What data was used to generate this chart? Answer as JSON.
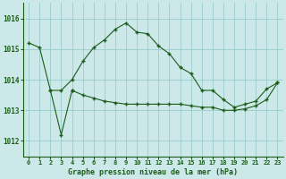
{
  "title": "Graphe pression niveau de la mer (hPa)",
  "background_color": "#cce8e8",
  "grid_color": "#99cccc",
  "line_color": "#1a5c1a",
  "xlim": [
    -0.5,
    23.5
  ],
  "ylim": [
    1011.5,
    1016.5
  ],
  "yticks": [
    1012,
    1013,
    1014,
    1015,
    1016
  ],
  "xticks": [
    0,
    1,
    2,
    3,
    4,
    5,
    6,
    7,
    8,
    9,
    10,
    11,
    12,
    13,
    14,
    15,
    16,
    17,
    18,
    19,
    20,
    21,
    22,
    23
  ],
  "series1_x": [
    0,
    1,
    2,
    3,
    4,
    5,
    6,
    7,
    8,
    9,
    10,
    11,
    12,
    13,
    14,
    15,
    16,
    17,
    18,
    19,
    20,
    21,
    22,
    23
  ],
  "series1_y": [
    1015.2,
    1015.05,
    1013.65,
    1013.65,
    1014.0,
    1014.6,
    1015.05,
    1015.3,
    1015.65,
    1015.85,
    1015.55,
    1015.5,
    1015.1,
    1014.85,
    1014.4,
    1014.2,
    1013.65,
    1013.65,
    1013.35,
    1013.1,
    1013.2,
    1013.3,
    1013.7,
    1013.9
  ],
  "series2_x": [
    2,
    3,
    4
  ],
  "series2_y": [
    1013.65,
    1012.2,
    1013.65
  ],
  "series3_x": [
    4,
    5,
    6,
    7,
    8,
    9,
    10,
    11,
    12,
    13,
    14,
    15,
    16,
    17,
    18,
    19,
    20,
    21,
    22,
    23
  ],
  "series3_y": [
    1013.65,
    1013.5,
    1013.4,
    1013.3,
    1013.25,
    1013.2,
    1013.2,
    1013.2,
    1013.2,
    1013.2,
    1013.2,
    1013.15,
    1013.1,
    1013.1,
    1013.0,
    1013.0,
    1013.05,
    1013.15,
    1013.35,
    1013.9
  ],
  "figsize": [
    3.2,
    2.0
  ],
  "dpi": 100
}
